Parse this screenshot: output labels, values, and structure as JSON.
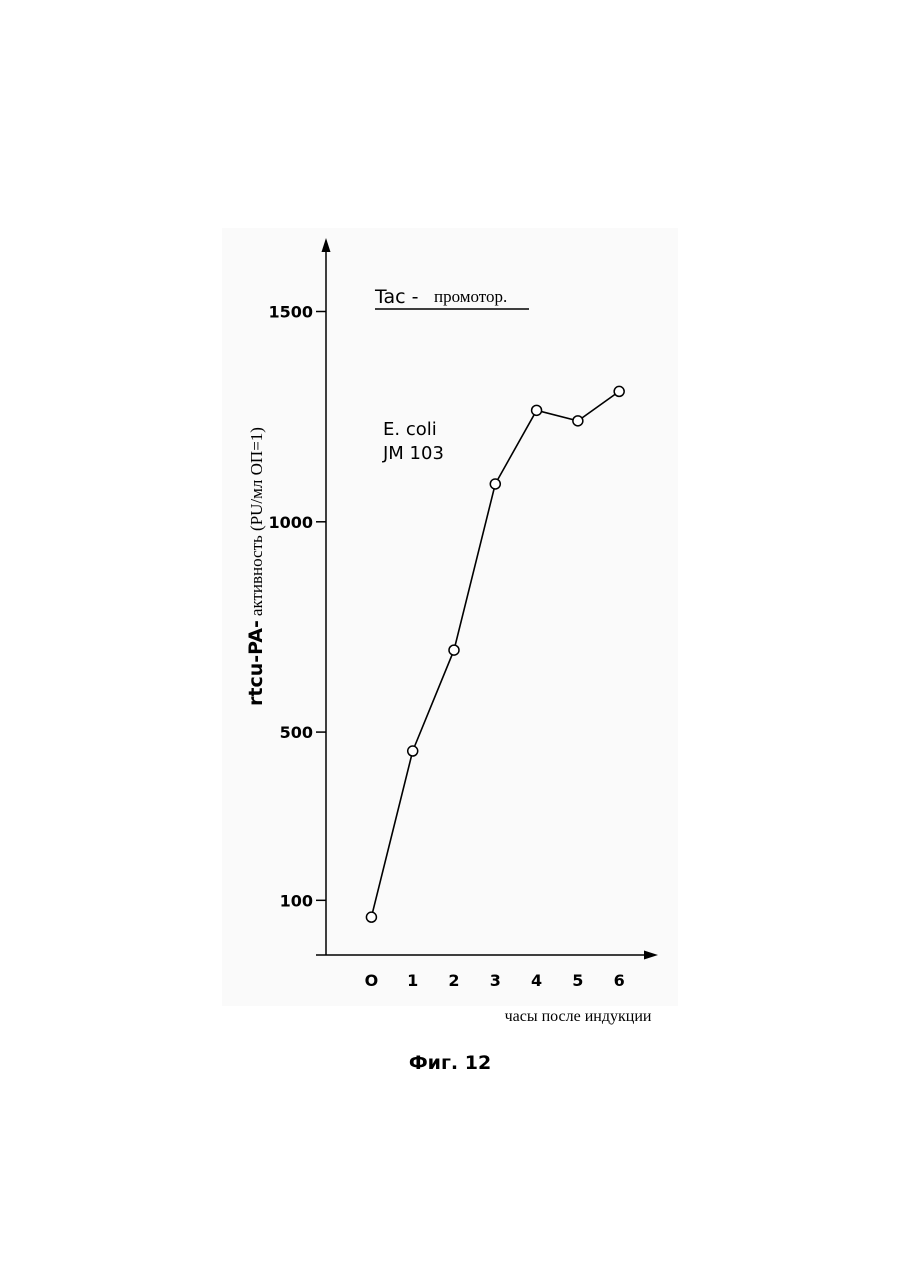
{
  "figure_caption": "Фиг. 12",
  "chart_data": {
    "type": "line",
    "title_main": "Tac -",
    "title_suffix": "промотор.",
    "annotation_line1": "E. coli",
    "annotation_line2": "JM 103",
    "ylabel_main": "rtcu-PA-",
    "ylabel_suffix": "активность (PU/мл ОП=1)",
    "xlabel": "часы после индукции",
    "x_ticks": [
      "O",
      "1",
      "2",
      "3",
      "4",
      "5",
      "6"
    ],
    "y_ticks": [
      100,
      500,
      1000,
      1500
    ],
    "y_tick_labels": [
      "100",
      "500",
      "1000",
      "1500"
    ],
    "x": [
      0,
      1,
      2,
      3,
      4,
      5,
      6
    ],
    "y": [
      60,
      455,
      695,
      1090,
      1265,
      1240,
      1310
    ],
    "xlim": [
      -1.1,
      6.65
    ],
    "ylim": [
      -30,
      1670
    ],
    "grid": false,
    "marker": "open-circle",
    "color": "#000000"
  }
}
